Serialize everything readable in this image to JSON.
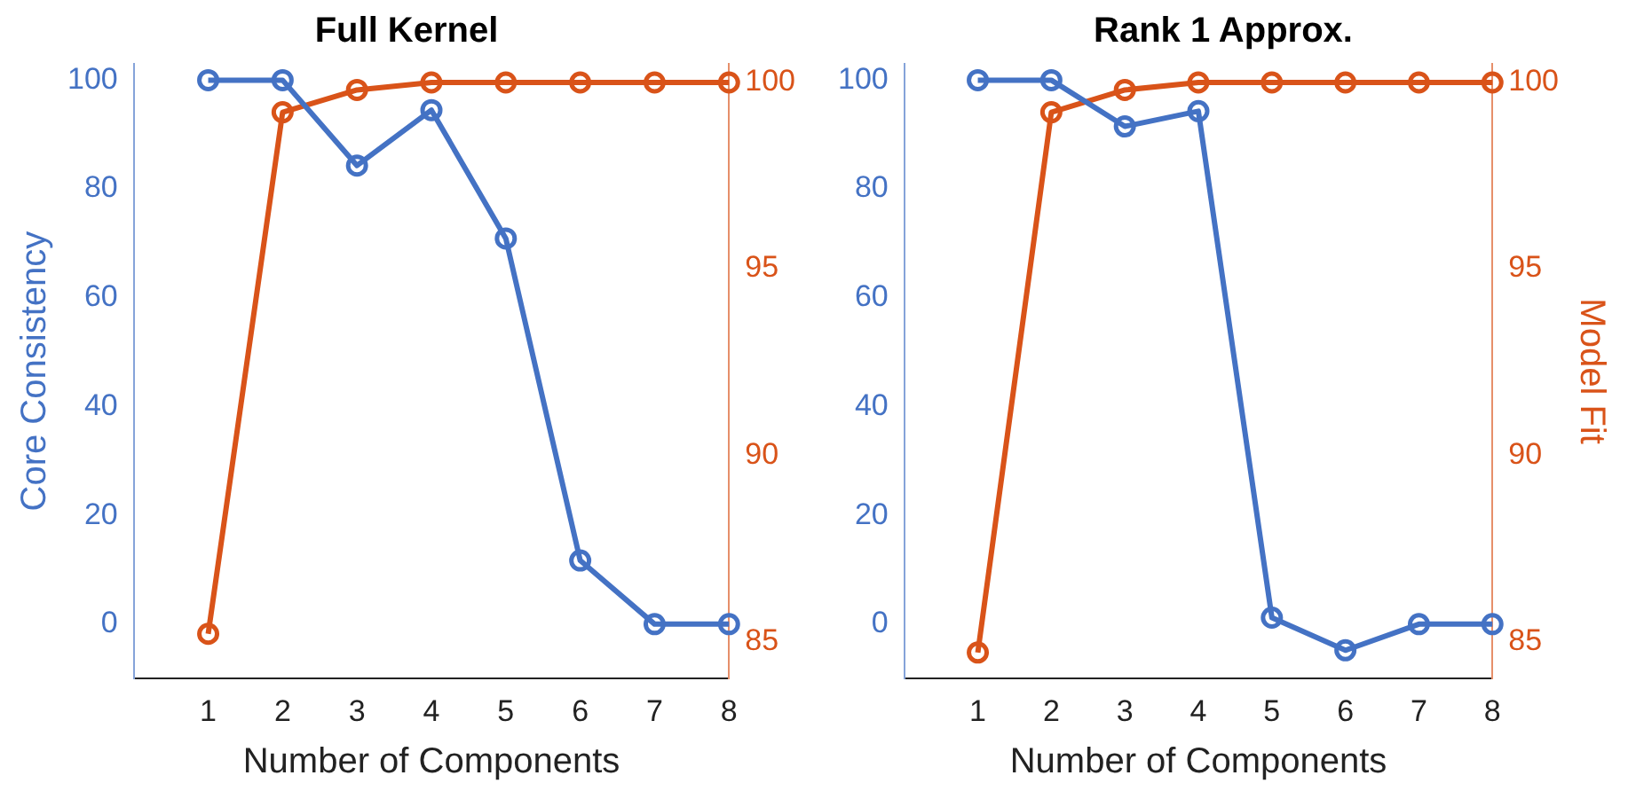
{
  "chart_data": [
    {
      "type": "line",
      "title": "Full Kernel",
      "xlabel": "Number of Components",
      "ylabel": "Core Consistency",
      "x": [
        1,
        2,
        3,
        4,
        5,
        6,
        7,
        8
      ],
      "xlim": [
        0,
        8
      ],
      "xticks": [
        1,
        2,
        3,
        4,
        5,
        6,
        7,
        8
      ],
      "ylim": [
        -10,
        103
      ],
      "yticks": [
        0,
        20,
        40,
        60,
        80,
        100
      ],
      "y2lim": [
        84,
        100.5
      ],
      "y2ticks": [
        85,
        90,
        95,
        100
      ],
      "marker": "circle",
      "grid": false,
      "legend": false,
      "series": [
        {
          "color": "#4472c4",
          "values": [
            100,
            100,
            84.3,
            94.5,
            70.9,
            11.7,
            0,
            0
          ]
        },
        {
          "color": "#d95319",
          "axis": "y2",
          "values": [
            85.2,
            99.2,
            99.8,
            100,
            100,
            100,
            100,
            100
          ]
        }
      ]
    },
    {
      "type": "line",
      "title": "Rank 1 Approx.",
      "xlabel": "Number of Components",
      "y2label": "Model Fit",
      "x": [
        1,
        2,
        3,
        4,
        5,
        6,
        7,
        8
      ],
      "xlim": [
        0,
        8
      ],
      "xticks": [
        1,
        2,
        3,
        4,
        5,
        6,
        7,
        8
      ],
      "ylim": [
        -10,
        103
      ],
      "yticks": [
        0,
        20,
        40,
        60,
        80,
        100
      ],
      "y2lim": [
        84,
        100.5
      ],
      "y2ticks": [
        85,
        90,
        95,
        100
      ],
      "marker": "circle",
      "grid": false,
      "legend": false,
      "series": [
        {
          "color": "#4472c4",
          "values": [
            100,
            100,
            91.5,
            94.3,
            1.2,
            -4.8,
            0,
            0
          ]
        },
        {
          "color": "#d95319",
          "axis": "y2",
          "values": [
            84.7,
            99.2,
            99.8,
            100,
            100,
            100,
            100,
            100
          ]
        }
      ]
    }
  ]
}
